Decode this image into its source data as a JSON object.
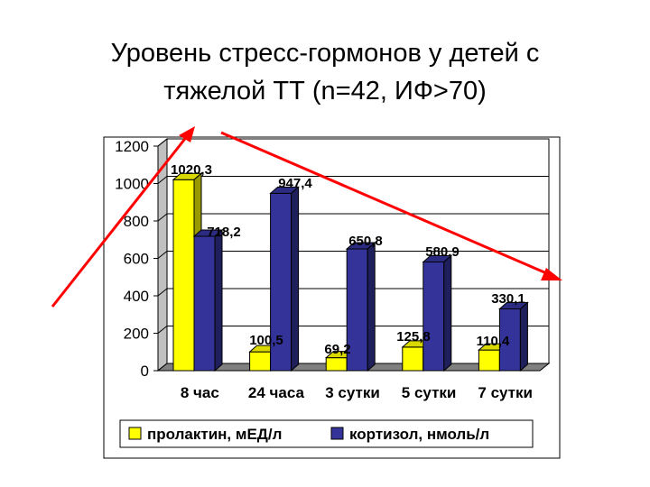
{
  "slide": {
    "title_line1": "Уровень стресс-гормонов у детей с",
    "title_line2": "тяжелой ТТ (n=42, ИФ>70)"
  },
  "chart_data": {
    "type": "bar",
    "style": "3d-clustered",
    "categories": [
      "8 час",
      "24 часа",
      "3 сутки",
      "5 сутки",
      "7 сутки"
    ],
    "series": [
      {
        "name": "пролактин, мЕД/л",
        "color": "#ffff00",
        "values": [
          1020.3,
          100.5,
          69.2,
          125.8,
          110.4
        ],
        "labels": [
          "1020,3",
          "100,5",
          "69,2",
          "125,8",
          "110,4"
        ]
      },
      {
        "name": "кортизол, нмоль/л",
        "color": "#333399",
        "values": [
          718.2,
          947.4,
          650.8,
          580.9,
          330.1
        ],
        "labels": [
          "718,2",
          "947,4",
          "650,8",
          "580,9",
          "330,1"
        ]
      }
    ],
    "y_ticks": [
      "0",
      "200",
      "400",
      "600",
      "800",
      "1000",
      "1200"
    ],
    "ylim": [
      0,
      1200
    ],
    "grid": true,
    "legend_position": "bottom",
    "annotation_color": "#ff0000"
  }
}
